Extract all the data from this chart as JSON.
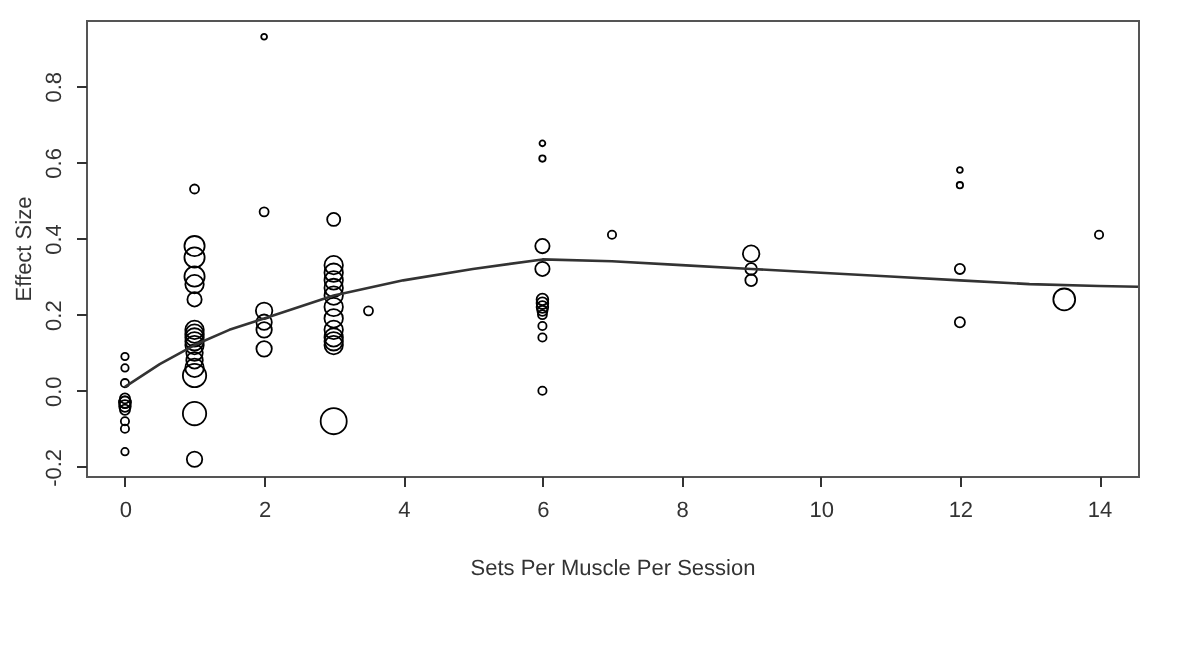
{
  "chart_data": {
    "type": "bubble",
    "xlabel": "Sets Per Muscle Per Session",
    "ylabel": "Effect Size",
    "xlim": [
      -0.56,
      14.56
    ],
    "ylim": [
      -0.224,
      0.974
    ],
    "xticks": [
      0,
      2,
      4,
      6,
      8,
      10,
      12,
      14
    ],
    "yticks": [
      -0.2,
      {
        "value": 0,
        "label": "0.0"
      },
      0.2,
      0.4,
      0.6,
      0.8
    ],
    "grid": false,
    "series": [
      {
        "marker": "circle",
        "color": "#000000",
        "x": [
          0,
          0,
          0,
          0,
          0,
          0,
          0,
          0,
          0,
          0,
          0,
          1,
          1,
          1,
          1,
          1,
          1,
          1,
          1,
          1,
          1,
          1,
          1,
          1,
          1,
          1,
          1,
          1,
          2,
          2,
          2,
          2,
          2,
          2,
          3,
          3,
          3,
          3,
          3,
          3,
          3,
          3,
          3,
          3,
          3,
          3,
          3,
          3.5,
          6,
          6,
          6,
          6,
          6,
          6,
          6,
          6,
          6,
          6,
          6,
          6,
          7,
          9,
          9,
          9,
          12,
          12,
          12,
          12,
          13.5,
          14
        ],
        "values": [
          0.09,
          0.06,
          0.02,
          -0.02,
          -0.03,
          -0.04,
          -0.05,
          -0.03,
          -0.08,
          -0.1,
          -0.16,
          0.53,
          0.38,
          0.35,
          0.3,
          0.28,
          0.24,
          0.16,
          0.15,
          0.14,
          0.13,
          0.12,
          0.1,
          0.08,
          0.06,
          0.04,
          -0.06,
          -0.18,
          0.93,
          0.47,
          0.21,
          0.18,
          0.16,
          0.11,
          0.45,
          0.33,
          0.31,
          0.29,
          0.27,
          0.25,
          0.22,
          0.19,
          0.16,
          0.14,
          0.13,
          0.12,
          -0.08,
          0.21,
          0.65,
          0.61,
          0.38,
          0.32,
          0.24,
          0.23,
          0.22,
          0.21,
          0.2,
          0.17,
          0.14,
          0.0,
          0.41,
          0.36,
          0.32,
          0.29,
          0.58,
          0.54,
          0.32,
          0.18,
          0.24,
          0.41
        ],
        "sizes": [
          0.08,
          0.08,
          0.1,
          0.15,
          0.2,
          0.2,
          0.15,
          0.2,
          0.1,
          0.1,
          0.08,
          0.12,
          0.6,
          0.6,
          0.6,
          0.5,
          0.3,
          0.5,
          0.5,
          0.5,
          0.5,
          0.5,
          0.4,
          0.4,
          0.5,
          0.8,
          0.8,
          0.35,
          0.05,
          0.12,
          0.4,
          0.35,
          0.35,
          0.35,
          0.25,
          0.5,
          0.5,
          0.5,
          0.5,
          0.5,
          0.5,
          0.5,
          0.5,
          0.5,
          0.5,
          0.5,
          1,
          0.12,
          0.05,
          0.06,
          0.3,
          0.3,
          0.2,
          0.2,
          0.2,
          0.15,
          0.12,
          0.1,
          0.1,
          0.1,
          0.1,
          0.4,
          0.2,
          0.2,
          0.05,
          0.06,
          0.15,
          0.15,
          0.7,
          0.1
        ]
      },
      {
        "type": "line",
        "marker": "none",
        "line_style": "solid",
        "color": "#333333",
        "x": [
          0,
          0.5,
          1,
          1.5,
          2,
          3,
          4,
          5,
          6,
          7,
          8,
          9,
          10,
          11,
          12,
          13,
          14,
          14.56
        ],
        "values": [
          0.01,
          0.07,
          0.12,
          0.16,
          0.19,
          0.25,
          0.29,
          0.32,
          0.345,
          0.34,
          0.33,
          0.32,
          0.31,
          0.3,
          0.29,
          0.28,
          0.275,
          0.273
        ]
      }
    ]
  }
}
